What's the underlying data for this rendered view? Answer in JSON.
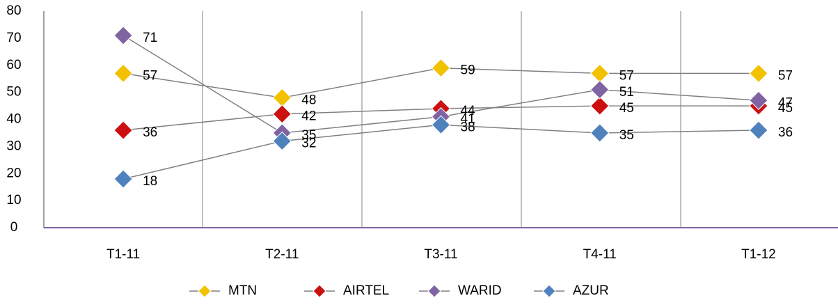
{
  "chart_data": {
    "type": "line",
    "categories": [
      "T1-11",
      "T2-11",
      "T3-11",
      "T4-11",
      "T1-12"
    ],
    "series": [
      {
        "name": "MTN",
        "color": "#f2c200",
        "values": [
          57,
          48,
          59,
          57,
          57
        ]
      },
      {
        "name": "AIRTEL",
        "color": "#cc1010",
        "values": [
          36,
          42,
          44,
          45,
          45
        ]
      },
      {
        "name": "WARID",
        "color": "#8064a2",
        "values": [
          71,
          35,
          41,
          51,
          47
        ]
      },
      {
        "name": "AZUR",
        "color": "#4f81bd",
        "values": [
          18,
          32,
          38,
          35,
          36
        ]
      }
    ],
    "ylim": [
      0,
      80
    ],
    "yticks": [
      0,
      10,
      20,
      30,
      40,
      50,
      60,
      70,
      80
    ],
    "line_color": "#808080",
    "legend": "bottom"
  }
}
